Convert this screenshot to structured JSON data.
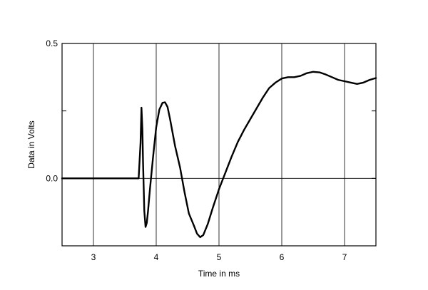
{
  "chart_data": {
    "type": "line",
    "title": "",
    "xlabel": "Time in ms",
    "ylabel": "Data in Volts",
    "xlim": [
      2.5,
      7.5
    ],
    "ylim": [
      -0.25,
      0.5
    ],
    "x_ticks": [
      3,
      4,
      5,
      6,
      7
    ],
    "x_tick_labels": [
      "3",
      "4",
      "5",
      "6",
      "7"
    ],
    "y_tick_labels": [
      {
        "value": 0.5,
        "label": "0.5"
      },
      {
        "value": 0.0,
        "label": "0.0"
      }
    ],
    "y_minor_ticks": [
      0.25
    ],
    "grid": true,
    "legend": false,
    "line_color": "#000000",
    "series": [
      {
        "x": [
          2.5,
          3.0,
          3.5,
          3.72,
          3.75,
          3.765,
          3.78,
          3.79,
          3.81,
          3.83,
          3.85,
          3.87,
          3.9,
          3.95,
          4.0,
          4.05,
          4.1,
          4.14,
          4.18,
          4.22,
          4.3,
          4.38,
          4.45,
          4.52,
          4.6,
          4.65,
          4.7,
          4.75,
          4.82,
          4.9,
          5.0,
          5.1,
          5.2,
          5.3,
          5.4,
          5.5,
          5.6,
          5.7,
          5.8,
          5.9,
          6.0,
          6.1,
          6.2,
          6.3,
          6.4,
          6.5,
          6.6,
          6.7,
          6.8,
          6.9,
          7.0,
          7.1,
          7.2,
          7.3,
          7.4,
          7.5
        ],
        "y": [
          0.0,
          0.0,
          0.0,
          0.0,
          0.13,
          0.262,
          0.18,
          0.06,
          -0.12,
          -0.18,
          -0.165,
          -0.12,
          -0.04,
          0.08,
          0.19,
          0.255,
          0.28,
          0.282,
          0.265,
          0.22,
          0.12,
          0.04,
          -0.05,
          -0.13,
          -0.175,
          -0.205,
          -0.218,
          -0.21,
          -0.17,
          -0.11,
          -0.04,
          0.02,
          0.08,
          0.135,
          0.18,
          0.22,
          0.26,
          0.3,
          0.335,
          0.355,
          0.37,
          0.375,
          0.375,
          0.38,
          0.39,
          0.395,
          0.393,
          0.385,
          0.375,
          0.365,
          0.36,
          0.355,
          0.35,
          0.355,
          0.365,
          0.372
        ]
      }
    ]
  }
}
